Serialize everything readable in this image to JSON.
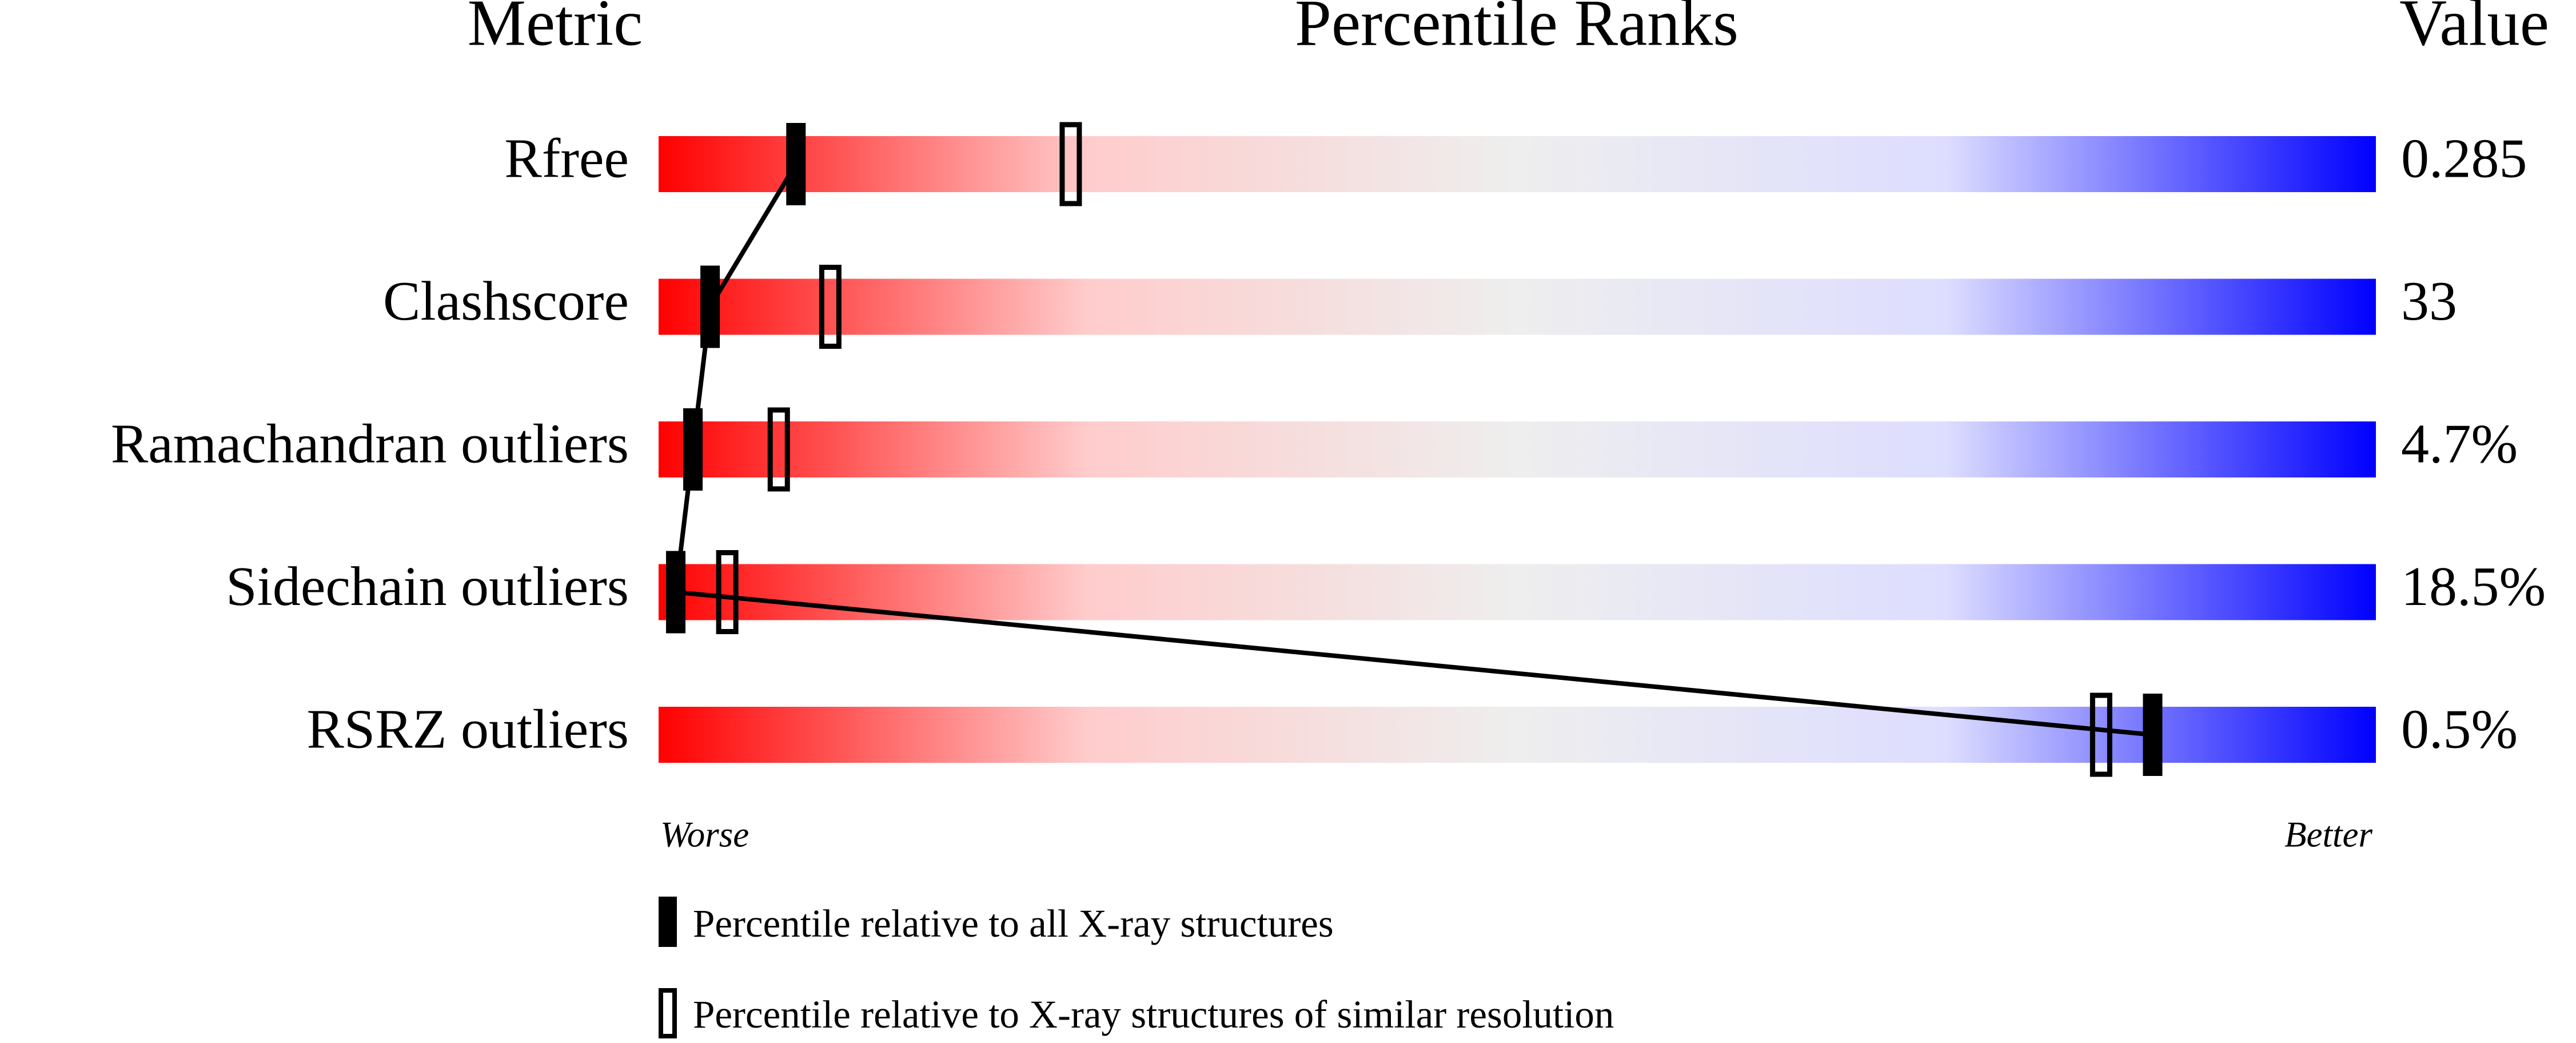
{
  "chart_data": {
    "type": "percentile-slider",
    "headers": [
      "Metric",
      "Percentile Ranks",
      "Value"
    ],
    "categories": [
      "Rfree",
      "Clashscore",
      "Ramachandran outliers",
      "Sidechain outliers",
      "RSRZ outliers"
    ],
    "metric_values": [
      "0.285",
      "33",
      "4.7%",
      "18.5%",
      "0.5%"
    ],
    "series": [
      {
        "name": "Percentile relative to all X-ray structures",
        "color": "#000000",
        "values": [
          8,
          3,
          2,
          1,
          87
        ]
      },
      {
        "name": "Percentile relative to X-ray structures of similar resolution",
        "color": "#000000",
        "values": [
          24,
          10,
          7,
          4,
          84
        ]
      }
    ],
    "xlim": [
      0,
      100
    ],
    "axis_labels": [
      "Worse",
      "Better"
    ],
    "gradient": [
      "#ff0000",
      "#ffcccc",
      "#eeeeee",
      "#ddddff",
      "#0000ff"
    ]
  }
}
